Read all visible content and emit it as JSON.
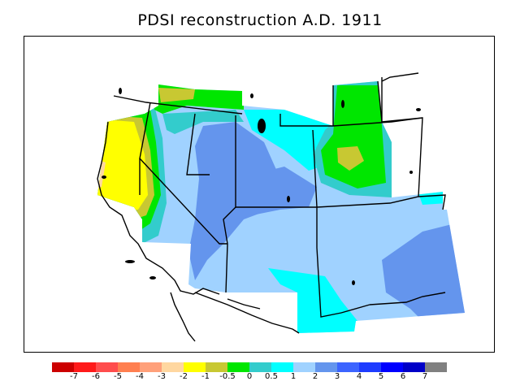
{
  "title": "PDSI reconstruction A.D. 1911",
  "colorbar": {
    "colors": [
      "#cc0000",
      "#ff1a1a",
      "#ff4d4d",
      "#ff7f50",
      "#ffa07a",
      "#ffd7a0",
      "#ffff00",
      "#c8c832",
      "#00e600",
      "#33cccc",
      "#00ffff",
      "#a0d2ff",
      "#6495ed",
      "#3c64ff",
      "#1e3cff",
      "#0000ff",
      "#0000c8",
      "#808080"
    ],
    "labels": [
      "-7",
      "-6",
      "-5",
      "-4",
      "-3",
      "-2",
      "-1",
      "-0.5",
      "0",
      "0.5",
      "1",
      "2",
      "3",
      "4",
      "5",
      "6",
      "7"
    ]
  },
  "map_colors": {
    "v_lt_-1": "#ffff00",
    "v_-1_-0.5": "#c8c832",
    "v_-0.5_0": "#00e600",
    "v_0_0.5": "#33cccc",
    "v_0.5_1": "#00ffff",
    "v_1_2": "#a0d2ff",
    "v_2_3": "#6495ed",
    "v_dry_edge": "#ffd7a0"
  }
}
